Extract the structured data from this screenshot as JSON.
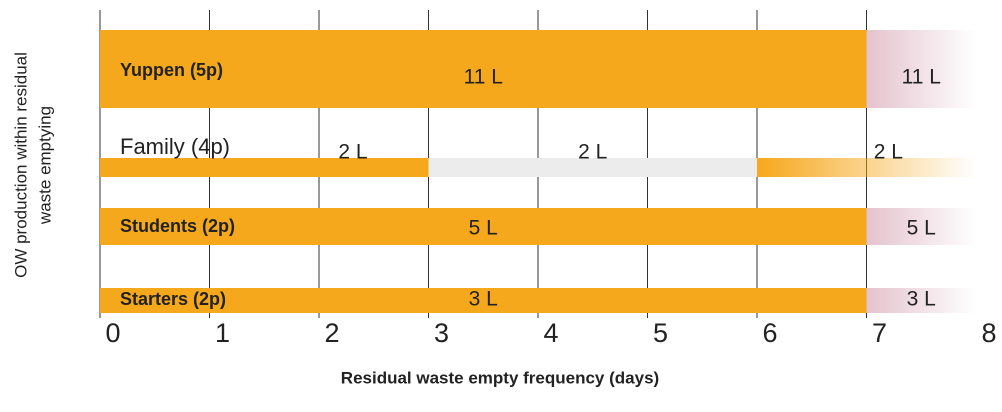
{
  "chart_data": {
    "type": "segmented-bar",
    "y_axis_label": [
      "OW production within residual",
      "waste emptying"
    ],
    "x_axis_label": "Residual waste empty frequency (days)",
    "xlim": [
      0,
      8
    ],
    "xticks": [
      0,
      1,
      2,
      3,
      4,
      5,
      6,
      7,
      8
    ],
    "grid": true,
    "rows": [
      {
        "name": "Yuppen (5p)",
        "segments": [
          {
            "from": 0,
            "to": 7,
            "label": "11 L",
            "color": "#f6a81c",
            "style": "solid"
          },
          {
            "from": 7,
            "to": 8,
            "label": "11 L",
            "color": "#e4c3cd",
            "style": "fade"
          }
        ]
      },
      {
        "name": "Family (4p)",
        "segments": [
          {
            "from": 0,
            "to": 3,
            "label": "2 L",
            "color": "#f6a81c",
            "style": "solid"
          },
          {
            "from": 3,
            "to": 6,
            "label": "2 L",
            "color": "#ececec",
            "style": "solid"
          },
          {
            "from": 6,
            "to": 8,
            "label": "2 L",
            "color": "#f6a81c",
            "style": "fade"
          }
        ]
      },
      {
        "name": "Students (2p)",
        "segments": [
          {
            "from": 0,
            "to": 7,
            "label": "5 L",
            "color": "#f6a81c",
            "style": "solid"
          },
          {
            "from": 7,
            "to": 8,
            "label": "5 L",
            "color": "#e4c3cd",
            "style": "fade"
          }
        ]
      },
      {
        "name": "Starters (2p)",
        "segments": [
          {
            "from": 0,
            "to": 7,
            "label": "3 L",
            "color": "#f6a81c",
            "style": "solid"
          },
          {
            "from": 7,
            "to": 8,
            "label": "3 L",
            "color": "#e4c3cd",
            "style": "fade"
          }
        ]
      }
    ]
  }
}
